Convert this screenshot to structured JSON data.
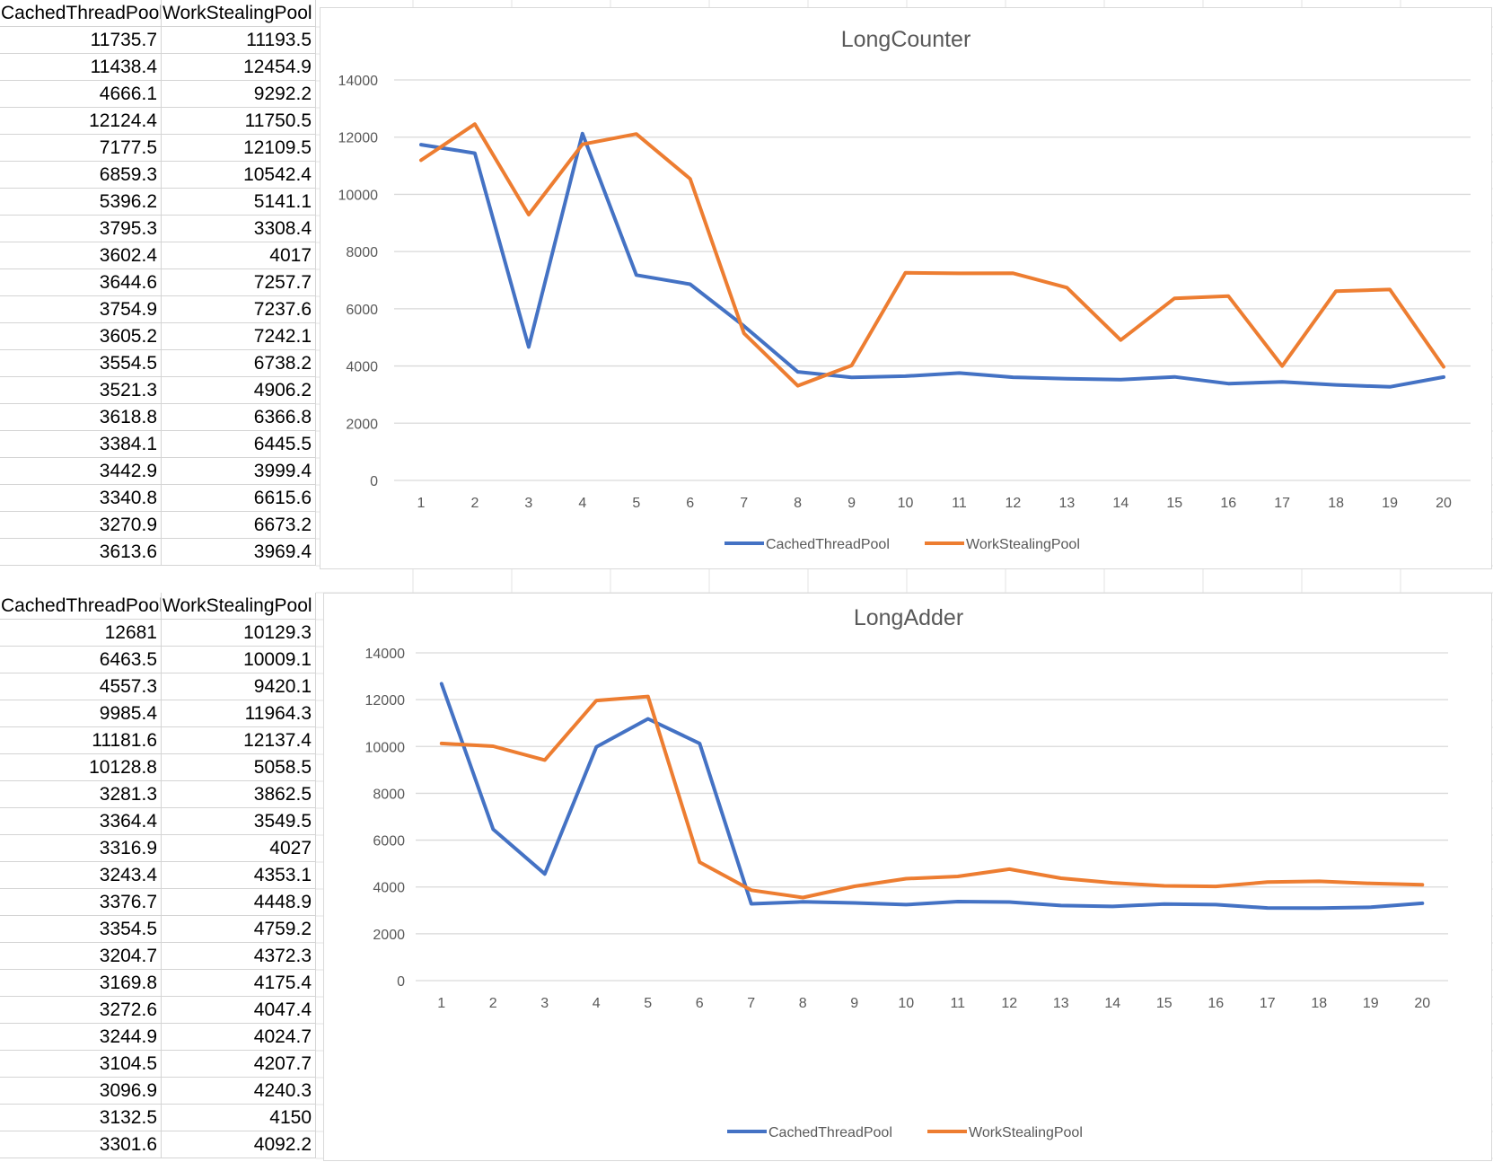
{
  "tables": [
    {
      "headers": [
        "CachedThreadPool",
        "WorkStealingPool"
      ],
      "rows": [
        [
          "11735.7",
          "11193.5"
        ],
        [
          "11438.4",
          "12454.9"
        ],
        [
          "4666.1",
          "9292.2"
        ],
        [
          "12124.4",
          "11750.5"
        ],
        [
          "7177.5",
          "12109.5"
        ],
        [
          "6859.3",
          "10542.4"
        ],
        [
          "5396.2",
          "5141.1"
        ],
        [
          "3795.3",
          "3308.4"
        ],
        [
          "3602.4",
          "4017"
        ],
        [
          "3644.6",
          "7257.7"
        ],
        [
          "3754.9",
          "7237.6"
        ],
        [
          "3605.2",
          "7242.1"
        ],
        [
          "3554.5",
          "6738.2"
        ],
        [
          "3521.3",
          "4906.2"
        ],
        [
          "3618.8",
          "6366.8"
        ],
        [
          "3384.1",
          "6445.5"
        ],
        [
          "3442.9",
          "3999.4"
        ],
        [
          "3340.8",
          "6615.6"
        ],
        [
          "3270.9",
          "6673.2"
        ],
        [
          "3613.6",
          "3969.4"
        ]
      ]
    },
    {
      "headers": [
        "CachedThreadPool",
        "WorkStealingPool"
      ],
      "rows": [
        [
          "12681",
          "10129.3"
        ],
        [
          "6463.5",
          "10009.1"
        ],
        [
          "4557.3",
          "9420.1"
        ],
        [
          "9985.4",
          "11964.3"
        ],
        [
          "11181.6",
          "12137.4"
        ],
        [
          "10128.8",
          "5058.5"
        ],
        [
          "3281.3",
          "3862.5"
        ],
        [
          "3364.4",
          "3549.5"
        ],
        [
          "3316.9",
          "4027"
        ],
        [
          "3243.4",
          "4353.1"
        ],
        [
          "3376.7",
          "4448.9"
        ],
        [
          "3354.5",
          "4759.2"
        ],
        [
          "3204.7",
          "4372.3"
        ],
        [
          "3169.8",
          "4175.4"
        ],
        [
          "3272.6",
          "4047.4"
        ],
        [
          "3244.9",
          "4024.7"
        ],
        [
          "3104.5",
          "4207.7"
        ],
        [
          "3096.9",
          "4240.3"
        ],
        [
          "3132.5",
          "4150"
        ],
        [
          "3301.6",
          "4092.2"
        ]
      ]
    }
  ],
  "chart_data": [
    {
      "type": "line",
      "title": "LongCounter",
      "x": [
        1,
        2,
        3,
        4,
        5,
        6,
        7,
        8,
        9,
        10,
        11,
        12,
        13,
        14,
        15,
        16,
        17,
        18,
        19,
        20
      ],
      "ylim": [
        0,
        14000
      ],
      "yticks": [
        0,
        2000,
        4000,
        6000,
        8000,
        10000,
        12000,
        14000
      ],
      "legend": "bottom",
      "grid": true,
      "series": [
        {
          "name": "CachedThreadPool",
          "color": "#4472C4",
          "values": [
            11735.7,
            11438.4,
            4666.1,
            12124.4,
            7177.5,
            6859.3,
            5396.2,
            3795.3,
            3602.4,
            3644.6,
            3754.9,
            3605.2,
            3554.5,
            3521.3,
            3618.8,
            3384.1,
            3442.9,
            3340.8,
            3270.9,
            3613.6
          ]
        },
        {
          "name": "WorkStealingPool",
          "color": "#ED7D31",
          "values": [
            11193.5,
            12454.9,
            9292.2,
            11750.5,
            12109.5,
            10542.4,
            5141.1,
            3308.4,
            4017,
            7257.7,
            7237.6,
            7242.1,
            6738.2,
            4906.2,
            6366.8,
            6445.5,
            3999.4,
            6615.6,
            6673.2,
            3969.4
          ]
        }
      ]
    },
    {
      "type": "line",
      "title": "LongAdder",
      "x": [
        1,
        2,
        3,
        4,
        5,
        6,
        7,
        8,
        9,
        10,
        11,
        12,
        13,
        14,
        15,
        16,
        17,
        18,
        19,
        20
      ],
      "ylim": [
        0,
        14000
      ],
      "yticks": [
        0,
        2000,
        4000,
        6000,
        8000,
        10000,
        12000,
        14000
      ],
      "legend": "bottom",
      "grid": true,
      "series": [
        {
          "name": "CachedThreadPool",
          "color": "#4472C4",
          "values": [
            12681,
            6463.5,
            4557.3,
            9985.4,
            11181.6,
            10128.8,
            3281.3,
            3364.4,
            3316.9,
            3243.4,
            3376.7,
            3354.5,
            3204.7,
            3169.8,
            3272.6,
            3244.9,
            3104.5,
            3096.9,
            3132.5,
            3301.6
          ]
        },
        {
          "name": "WorkStealingPool",
          "color": "#ED7D31",
          "values": [
            10129.3,
            10009.1,
            9420.1,
            11964.3,
            12137.4,
            5058.5,
            3862.5,
            3549.5,
            4027,
            4353.1,
            4448.9,
            4759.2,
            4372.3,
            4175.4,
            4047.4,
            4024.7,
            4207.7,
            4240.3,
            4150,
            4092.2
          ]
        }
      ]
    }
  ]
}
